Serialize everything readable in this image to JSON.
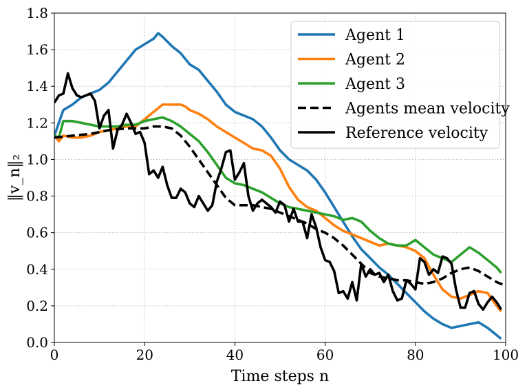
{
  "chart_data": {
    "type": "line",
    "xlabel": "Time steps n",
    "ylabel": "‖v_n‖₂",
    "xlim": [
      0,
      100
    ],
    "ylim": [
      0,
      1.8
    ],
    "xticks": [
      0,
      20,
      40,
      60,
      80,
      100
    ],
    "yticks": [
      0.0,
      0.2,
      0.4,
      0.6,
      0.8,
      1.0,
      1.2,
      1.4,
      1.6,
      1.8
    ],
    "xtick_labels": [
      "0",
      "20",
      "40",
      "60",
      "80",
      "100"
    ],
    "ytick_labels": [
      "0.0",
      "0.2",
      "0.4",
      "0.6",
      "0.8",
      "1.0",
      "1.2",
      "1.4",
      "1.6",
      "1.8"
    ],
    "grid": true,
    "legend_position": "top-right",
    "series": [
      {
        "name": "Agent 1",
        "color": "#1f77b4",
        "dash": "solid",
        "x": [
          0,
          2,
          4,
          6,
          8,
          10,
          12,
          14,
          16,
          18,
          20,
          22,
          23,
          24,
          26,
          28,
          30,
          32,
          34,
          36,
          38,
          40,
          42,
          44,
          46,
          48,
          50,
          52,
          54,
          56,
          58,
          60,
          62,
          64,
          66,
          68,
          70,
          72,
          74,
          76,
          78,
          80,
          82,
          84,
          86,
          88,
          90,
          92,
          94,
          96,
          98,
          99
        ],
        "y": [
          1.13,
          1.27,
          1.3,
          1.34,
          1.36,
          1.38,
          1.42,
          1.48,
          1.54,
          1.6,
          1.63,
          1.66,
          1.69,
          1.67,
          1.62,
          1.58,
          1.52,
          1.49,
          1.43,
          1.37,
          1.3,
          1.26,
          1.24,
          1.22,
          1.18,
          1.12,
          1.05,
          1.0,
          0.97,
          0.94,
          0.89,
          0.82,
          0.74,
          0.66,
          0.58,
          0.51,
          0.46,
          0.41,
          0.37,
          0.32,
          0.27,
          0.22,
          0.17,
          0.13,
          0.1,
          0.08,
          0.09,
          0.1,
          0.11,
          0.08,
          0.04,
          0.02
        ]
      },
      {
        "name": "Agent 2",
        "color": "#ff7f0e",
        "dash": "solid",
        "x": [
          0,
          1,
          2,
          4,
          6,
          8,
          10,
          12,
          14,
          16,
          18,
          20,
          22,
          24,
          26,
          28,
          29,
          30,
          32,
          34,
          36,
          38,
          40,
          42,
          44,
          46,
          48,
          50,
          52,
          54,
          56,
          58,
          60,
          62,
          64,
          66,
          68,
          70,
          72,
          74,
          76,
          78,
          80,
          82,
          84,
          86,
          88,
          90,
          92,
          94,
          96,
          98,
          99
        ],
        "y": [
          1.13,
          1.1,
          1.13,
          1.12,
          1.12,
          1.13,
          1.15,
          1.16,
          1.17,
          1.18,
          1.18,
          1.22,
          1.26,
          1.3,
          1.3,
          1.3,
          1.29,
          1.27,
          1.25,
          1.22,
          1.18,
          1.15,
          1.12,
          1.09,
          1.06,
          1.05,
          1.02,
          0.95,
          0.85,
          0.78,
          0.74,
          0.72,
          0.68,
          0.64,
          0.61,
          0.59,
          0.57,
          0.55,
          0.53,
          0.54,
          0.53,
          0.52,
          0.5,
          0.46,
          0.37,
          0.29,
          0.25,
          0.24,
          0.26,
          0.28,
          0.27,
          0.2,
          0.17
        ]
      },
      {
        "name": "Agent 3",
        "color": "#2ca02c",
        "dash": "solid",
        "x": [
          0,
          1,
          2,
          4,
          6,
          8,
          10,
          12,
          14,
          16,
          18,
          20,
          22,
          24,
          26,
          28,
          30,
          32,
          34,
          36,
          38,
          40,
          42,
          44,
          46,
          48,
          50,
          52,
          54,
          56,
          58,
          60,
          62,
          64,
          66,
          68,
          70,
          72,
          74,
          76,
          78,
          80,
          82,
          84,
          86,
          88,
          90,
          92,
          94,
          96,
          98,
          99
        ],
        "y": [
          1.13,
          1.12,
          1.21,
          1.21,
          1.2,
          1.19,
          1.18,
          1.18,
          1.18,
          1.19,
          1.19,
          1.21,
          1.22,
          1.23,
          1.21,
          1.18,
          1.14,
          1.1,
          1.04,
          0.97,
          0.9,
          0.87,
          0.86,
          0.84,
          0.82,
          0.79,
          0.76,
          0.74,
          0.73,
          0.72,
          0.71,
          0.7,
          0.69,
          0.67,
          0.68,
          0.66,
          0.61,
          0.57,
          0.54,
          0.53,
          0.53,
          0.56,
          0.52,
          0.48,
          0.46,
          0.44,
          0.48,
          0.52,
          0.49,
          0.45,
          0.41,
          0.38
        ]
      },
      {
        "name": "Agents mean velocity",
        "color": "#000000",
        "dash": "dashed",
        "x": [
          0,
          4,
          8,
          12,
          16,
          20,
          22,
          24,
          26,
          28,
          30,
          32,
          34,
          36,
          38,
          40,
          42,
          44,
          46,
          48,
          50,
          52,
          54,
          56,
          58,
          60,
          62,
          64,
          66,
          68,
          70,
          72,
          74,
          76,
          78,
          80,
          82,
          84,
          86,
          88,
          90,
          92,
          94,
          96,
          98,
          100
        ],
        "y": [
          1.12,
          1.13,
          1.14,
          1.16,
          1.17,
          1.17,
          1.18,
          1.18,
          1.17,
          1.13,
          1.07,
          1.0,
          0.93,
          0.86,
          0.79,
          0.75,
          0.75,
          0.75,
          0.74,
          0.73,
          0.71,
          0.69,
          0.67,
          0.65,
          0.62,
          0.6,
          0.57,
          0.53,
          0.48,
          0.43,
          0.38,
          0.36,
          0.35,
          0.34,
          0.34,
          0.33,
          0.32,
          0.33,
          0.35,
          0.38,
          0.4,
          0.41,
          0.39,
          0.36,
          0.33,
          0.31
        ]
      },
      {
        "name": "Reference velocity",
        "color": "#000000",
        "dash": "solid",
        "x": [
          0,
          1,
          2,
          3,
          4,
          5,
          6,
          7,
          8,
          9,
          10,
          11,
          12,
          13,
          14,
          15,
          16,
          17,
          18,
          19,
          20,
          21,
          22,
          23,
          24,
          25,
          26,
          27,
          28,
          29,
          30,
          31,
          32,
          33,
          34,
          35,
          36,
          37,
          38,
          39,
          40,
          41,
          42,
          43,
          44,
          45,
          46,
          47,
          48,
          49,
          50,
          51,
          52,
          53,
          54,
          55,
          56,
          57,
          58,
          59,
          60,
          61,
          62,
          63,
          64,
          65,
          66,
          67,
          68,
          69,
          70,
          71,
          72,
          73,
          74,
          75,
          76,
          77,
          78,
          79,
          80,
          81,
          82,
          83,
          84,
          85,
          86,
          87,
          88,
          89,
          90,
          91,
          92,
          93,
          94,
          95,
          96,
          97,
          98,
          99
        ],
        "y": [
          1.31,
          1.35,
          1.36,
          1.47,
          1.39,
          1.35,
          1.34,
          1.35,
          1.36,
          1.32,
          1.17,
          1.24,
          1.27,
          1.06,
          1.16,
          1.19,
          1.25,
          1.2,
          1.14,
          1.15,
          1.09,
          0.92,
          0.94,
          0.9,
          0.96,
          0.86,
          0.79,
          0.79,
          0.84,
          0.82,
          0.76,
          0.74,
          0.8,
          0.76,
          0.72,
          0.75,
          0.88,
          0.95,
          1.04,
          1.05,
          0.89,
          0.93,
          0.98,
          0.8,
          0.72,
          0.76,
          0.78,
          0.76,
          0.74,
          0.71,
          0.77,
          0.75,
          0.66,
          0.73,
          0.66,
          0.66,
          0.57,
          0.7,
          0.63,
          0.52,
          0.45,
          0.44,
          0.39,
          0.27,
          0.28,
          0.24,
          0.33,
          0.23,
          0.43,
          0.36,
          0.4,
          0.37,
          0.38,
          0.33,
          0.37,
          0.28,
          0.23,
          0.24,
          0.34,
          0.32,
          0.29,
          0.46,
          0.44,
          0.37,
          0.4,
          0.38,
          0.47,
          0.46,
          0.43,
          0.29,
          0.19,
          0.19,
          0.27,
          0.28,
          0.21,
          0.18,
          0.22,
          0.25,
          0.22,
          0.18
        ]
      }
    ]
  }
}
